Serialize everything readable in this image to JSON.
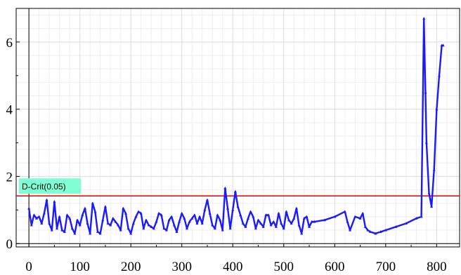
{
  "chart_data": {
    "type": "line",
    "title": "",
    "xlabel": "",
    "ylabel": "",
    "xlim": [
      -25,
      845
    ],
    "ylim": [
      -0.1,
      7.0
    ],
    "x_ticks": [
      0,
      100,
      200,
      300,
      400,
      500,
      600,
      700,
      800
    ],
    "x_tick_labels": [
      "0",
      "100",
      "200",
      "300",
      "400",
      "500",
      "600",
      "700",
      "800"
    ],
    "y_ticks": [
      0,
      2,
      4,
      6
    ],
    "y_tick_labels": [
      "0",
      "2",
      "4",
      "6"
    ],
    "grid": true,
    "reference_line": {
      "label": "D-Crit(0.05)",
      "y": 1.42,
      "color": "#e00000"
    },
    "colors": {
      "series": "#1a1aff",
      "grid": "#e2e2e2",
      "label_bg": "#7fffd4"
    },
    "series": [
      {
        "x": [
          0,
          5,
          10,
          15,
          20,
          25,
          30,
          35,
          40,
          45,
          50,
          55,
          60,
          65,
          70,
          75,
          80,
          85,
          90,
          95,
          100,
          105,
          110,
          115,
          120,
          125,
          130,
          135,
          140,
          145,
          150,
          155,
          160,
          165,
          170,
          175,
          180,
          185,
          190,
          195,
          200,
          205,
          210,
          215,
          220,
          225,
          230,
          235,
          240,
          245,
          250,
          255,
          260,
          265,
          270,
          275,
          280,
          285,
          290,
          295,
          300,
          305,
          310,
          315,
          320,
          325,
          330,
          335,
          340,
          345,
          350,
          355,
          360,
          365,
          370,
          375,
          380,
          385,
          390,
          395,
          400,
          405,
          410,
          415,
          420,
          425,
          430,
          435,
          440,
          445,
          450,
          455,
          460,
          465,
          470,
          475,
          480,
          485,
          490,
          495,
          500,
          505,
          510,
          515,
          520,
          525,
          530,
          535,
          540,
          545,
          550,
          555,
          560,
          580,
          600,
          620,
          625,
          630,
          640,
          650,
          655,
          660,
          665,
          670,
          680,
          690,
          700,
          720,
          740,
          760,
          770,
          775,
          778,
          780,
          785,
          790,
          795,
          800,
          805,
          810,
          813
        ],
        "y": [
          1.05,
          0.55,
          0.85,
          0.75,
          0.8,
          0.6,
          0.9,
          1.3,
          0.6,
          0.4,
          1.25,
          0.45,
          0.8,
          0.4,
          0.35,
          0.85,
          0.75,
          0.45,
          0.3,
          0.7,
          0.55,
          0.85,
          1.05,
          0.6,
          0.3,
          1.2,
          0.95,
          0.35,
          0.3,
          0.7,
          1.1,
          0.6,
          0.55,
          0.75,
          0.65,
          0.55,
          0.4,
          1.05,
          0.9,
          0.45,
          0.3,
          0.6,
          0.8,
          0.95,
          0.9,
          0.45,
          0.7,
          0.55,
          0.5,
          0.45,
          0.65,
          0.9,
          0.85,
          0.45,
          0.4,
          0.7,
          0.8,
          0.55,
          0.35,
          0.65,
          0.9,
          0.75,
          0.45,
          0.65,
          0.75,
          0.85,
          0.6,
          0.8,
          0.6,
          1.0,
          1.3,
          0.9,
          0.55,
          0.45,
          0.85,
          0.7,
          0.4,
          1.65,
          1.05,
          0.45,
          1.0,
          1.55,
          1.1,
          0.85,
          0.6,
          0.5,
          0.75,
          0.95,
          0.8,
          0.45,
          0.7,
          0.6,
          0.5,
          0.85,
          0.85,
          0.55,
          0.65,
          0.5,
          0.9,
          0.6,
          0.45,
          0.95,
          0.7,
          0.6,
          0.75,
          1.05,
          0.55,
          0.3,
          0.75,
          0.8,
          0.5,
          0.65,
          0.65,
          0.7,
          0.8,
          0.95,
          0.65,
          0.4,
          0.8,
          0.75,
          0.9,
          0.5,
          0.4,
          0.35,
          0.3,
          0.35,
          0.4,
          0.5,
          0.6,
          0.75,
          0.8,
          6.7,
          4.5,
          3.0,
          1.5,
          1.1,
          2.2,
          4.0,
          5.0,
          5.9,
          5.9
        ]
      }
    ]
  }
}
